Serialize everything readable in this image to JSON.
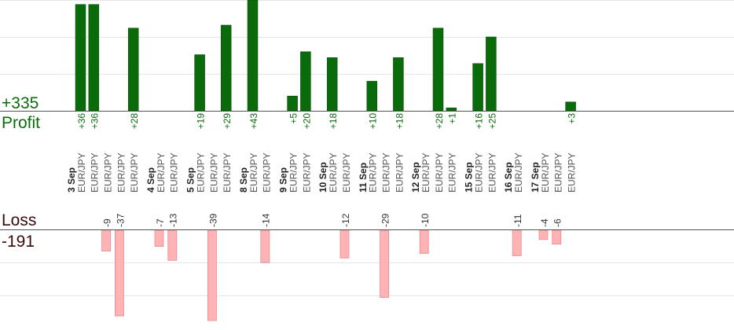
{
  "summary": {
    "profit_total": "+335",
    "profit_label": "Profit",
    "loss_label": "Loss",
    "loss_total": "-191"
  },
  "colors": {
    "profit_bar": "#0a6b0a",
    "profit_bar_edge": "#064a06",
    "profit_text": "#0a6b0a",
    "loss_bar": "#ffb3b5",
    "loss_bar_edge": "#e58a8d",
    "loss_text": "#333333",
    "summary_text_loss": "#3a0a0a",
    "grid": "#e6e6e6",
    "axis": "#555555",
    "pair_text": "#555555",
    "date_text": "#222222"
  },
  "chart_data": {
    "type": "bar",
    "description_series": [
      "profit",
      "loss"
    ],
    "groups": [
      {
        "date": "3 Sep",
        "trades": [
          {
            "pair": "EUR/JPY",
            "profit": 36
          },
          {
            "pair": "EUR/JPY",
            "profit": 36
          },
          {
            "pair": "EUR/JPY",
            "loss": -9
          },
          {
            "pair": "EUR/JPY",
            "loss": -37
          },
          {
            "pair": "EUR/JPY",
            "profit": 28
          }
        ]
      },
      {
        "date": "4 Sep",
        "trades": [
          {
            "pair": "EUR/JPY",
            "loss": -7
          },
          {
            "pair": "EUR/JPY",
            "loss": -13
          }
        ]
      },
      {
        "date": "5 Sep",
        "trades": [
          {
            "pair": "EUR/JPY",
            "profit": 19
          },
          {
            "pair": "EUR/JPY",
            "loss": -39
          },
          {
            "pair": "EUR/JPY",
            "profit": 29
          }
        ]
      },
      {
        "date": "8 Sep",
        "trades": [
          {
            "pair": "EUR/JPY",
            "profit": 43
          },
          {
            "pair": "EUR/JPY",
            "loss": -14
          }
        ]
      },
      {
        "date": "9 Sep",
        "trades": [
          {
            "pair": "EUR/JPY",
            "profit": 5
          },
          {
            "pair": "EUR/JPY",
            "profit": 20
          }
        ]
      },
      {
        "date": "10 Sep",
        "trades": [
          {
            "pair": "EUR/JPY",
            "profit": 18
          },
          {
            "pair": "EUR/JPY",
            "loss": -12
          }
        ]
      },
      {
        "date": "11 Sep",
        "trades": [
          {
            "pair": "EUR/JPY",
            "profit": 10
          },
          {
            "pair": "EUR/JPY",
            "loss": -29
          },
          {
            "pair": "EUR/JPY",
            "profit": 18
          }
        ]
      },
      {
        "date": "12 Sep",
        "trades": [
          {
            "pair": "EUR/JPY",
            "loss": -10
          },
          {
            "pair": "EUR/JPY",
            "profit": 28
          },
          {
            "pair": "EUR/JPY",
            "profit": 1
          }
        ]
      },
      {
        "date": "15 Sep",
        "trades": [
          {
            "pair": "EUR/JPY",
            "profit": 16
          },
          {
            "pair": "EUR/JPY",
            "profit": 25
          }
        ]
      },
      {
        "date": "16 Sep",
        "trades": [
          {
            "pair": "EUR/JPY",
            "loss": -11
          }
        ]
      },
      {
        "date": "17 Sep",
        "trades": [
          {
            "pair": "EUR/JPY",
            "loss": -4
          },
          {
            "pair": "EUR/JPY",
            "loss": -6
          },
          {
            "pair": "EUR/JPY",
            "profit": 3
          }
        ]
      }
    ],
    "profit_axis_max": 43,
    "loss_axis_max": 39,
    "grid": true
  }
}
